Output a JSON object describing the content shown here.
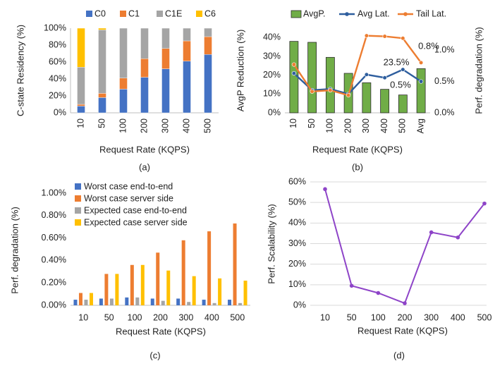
{
  "chart_data": [
    {
      "type": "bar",
      "stacked": true,
      "panel_label": "(a)",
      "xlabel": "Request Rate (KQPS)",
      "ylabel": "C-state Residency (%)",
      "categories": [
        "10",
        "50",
        "100",
        "200",
        "300",
        "400",
        "500"
      ],
      "y_ticks": [
        "0%",
        "20%",
        "40%",
        "60%",
        "80%",
        "100%"
      ],
      "ylim": [
        0,
        100
      ],
      "legend_position": "top",
      "series": [
        {
          "name": "C0",
          "color": "#4472C4",
          "values": [
            8,
            18,
            28,
            42,
            52,
            61,
            69
          ]
        },
        {
          "name": "C1",
          "color": "#ED7D31",
          "values": [
            2,
            5,
            13,
            22,
            24,
            24,
            21
          ]
        },
        {
          "name": "C1E",
          "color": "#A5A5A5",
          "values": [
            44,
            75,
            59,
            36,
            24,
            15,
            10
          ]
        },
        {
          "name": "C6",
          "color": "#FFC000",
          "values": [
            46,
            2,
            0,
            0,
            0,
            0,
            0
          ]
        }
      ]
    },
    {
      "type": "bar+line",
      "panel_label": "(b)",
      "xlabel": "Request Rate (KQPS)",
      "ylabel": "AvgP Reduction (%)",
      "ylabel_right": "Perf. degradation (%)",
      "categories": [
        "10",
        "50",
        "100",
        "200",
        "300",
        "400",
        "500",
        "Avg"
      ],
      "y_ticks": [
        "0%",
        "10%",
        "20%",
        "30%",
        "40%"
      ],
      "ylim": [
        0,
        45
      ],
      "y2_ticks": [
        "0.0%",
        "0.5%",
        "1.0%"
      ],
      "y2lim": [
        0,
        1.35
      ],
      "legend_position": "top",
      "bars": {
        "name": "AvgP.",
        "color": "#70AD47",
        "values": [
          38,
          37.5,
          29.5,
          21,
          16,
          12.5,
          9.5,
          23.5
        ]
      },
      "lines": [
        {
          "name": "Avg Lat.",
          "color": "#2E5E9E",
          "values": [
            0.63,
            0.36,
            0.38,
            0.3,
            0.61,
            0.56,
            0.69,
            0.5
          ]
        },
        {
          "name": "Tail Lat.",
          "color": "#ED7D31",
          "values": [
            0.77,
            0.34,
            0.36,
            0.28,
            1.23,
            1.22,
            1.19,
            0.8
          ]
        }
      ],
      "annotations": [
        {
          "text": "23.5%",
          "color": "#4EA72E"
        },
        {
          "text": "0.8%",
          "color": "#ED7D31"
        },
        {
          "text": "0.5%",
          "color": "#2E5E9E"
        }
      ]
    },
    {
      "type": "bar",
      "panel_label": "(c)",
      "xlabel": "Request Rate (KQPS)",
      "ylabel": "Perf. degradation (%)",
      "categories": [
        "10",
        "50",
        "100",
        "200",
        "300",
        "400",
        "500"
      ],
      "y_ticks": [
        "0.00%",
        "0.20%",
        "0.40%",
        "0.60%",
        "0.80%",
        "1.00%"
      ],
      "ylim": [
        0,
        1.0
      ],
      "legend_position": "top-left",
      "series": [
        {
          "name": "Worst case end-to-end",
          "color": "#4472C4",
          "values": [
            0.05,
            0.06,
            0.07,
            0.06,
            0.06,
            0.05,
            0.05
          ]
        },
        {
          "name": "Worst case server side",
          "color": "#ED7D31",
          "values": [
            0.11,
            0.28,
            0.36,
            0.47,
            0.58,
            0.66,
            0.73
          ]
        },
        {
          "name": "Expected case end-to-end",
          "color": "#A5A5A5",
          "values": [
            0.05,
            0.06,
            0.07,
            0.04,
            0.03,
            0.02,
            0.02
          ]
        },
        {
          "name": "Expected case server side",
          "color": "#FFC000",
          "values": [
            0.11,
            0.28,
            0.36,
            0.31,
            0.26,
            0.24,
            0.22
          ]
        }
      ]
    },
    {
      "type": "line",
      "panel_label": "(d)",
      "xlabel": "Request Rate (KQPS)",
      "ylabel": "Perf. Scalability (%)",
      "categories": [
        "10",
        "50",
        "100",
        "200",
        "300",
        "400",
        "500"
      ],
      "y_ticks": [
        "0%",
        "10%",
        "20%",
        "30%",
        "40%",
        "50%",
        "60%"
      ],
      "ylim": [
        0,
        60
      ],
      "grid": true,
      "series": [
        {
          "color": "#8E44C8",
          "values": [
            56.5,
            9.5,
            6,
            1,
            35.5,
            33,
            49.5
          ]
        }
      ]
    }
  ]
}
